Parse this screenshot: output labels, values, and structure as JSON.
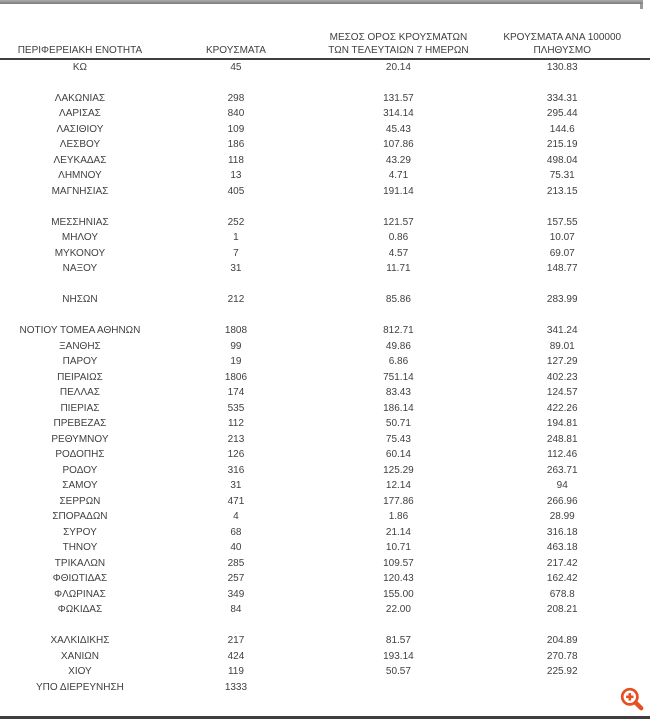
{
  "chart_data": {
    "type": "table",
    "title": "",
    "columns": [
      {
        "line1": "ΠΕΡΙΦΕΡΕΙΑΚΗ ΕΝΟΤΗΤΑ",
        "line2": ""
      },
      {
        "line1": "ΚΡΟΥΣΜΑΤΑ",
        "line2": ""
      },
      {
        "line1": "ΜΕΣΟΣ ΟΡΟΣ ΚΡΟΥΣΜΑΤΩΝ",
        "line2": "ΤΩΝ ΤΕΛΕΥΤΑΙΩΝ 7 ΗΜΕΡΩΝ"
      },
      {
        "line1": "ΚΡΟΥΣΜΑΤΑ ΑΝΑ 100000",
        "line2": "ΠΛΗΘΥΣΜΟ"
      }
    ],
    "groups": [
      {
        "rows": [
          [
            "ΚΩ",
            "45",
            "20.14",
            "130.83"
          ]
        ]
      },
      {
        "rows": [
          [
            "ΛΑΚΩΝΙΑΣ",
            "298",
            "131.57",
            "334.31"
          ],
          [
            "ΛΑΡΙΣΑΣ",
            "840",
            "314.14",
            "295.44"
          ],
          [
            "ΛΑΣΙΘΙΟΥ",
            "109",
            "45.43",
            "144.6"
          ],
          [
            "ΛΕΣΒΟΥ",
            "186",
            "107.86",
            "215.19"
          ],
          [
            "ΛΕΥΚΑΔΑΣ",
            "118",
            "43.29",
            "498.04"
          ],
          [
            "ΛΗΜΝΟΥ",
            "13",
            "4.71",
            "75.31"
          ],
          [
            "ΜΑΓΝΗΣΙΑΣ",
            "405",
            "191.14",
            "213.15"
          ]
        ]
      },
      {
        "rows": [
          [
            "ΜΕΣΣΗΝΙΑΣ",
            "252",
            "121.57",
            "157.55"
          ],
          [
            "ΜΗΛΟΥ",
            "1",
            "0.86",
            "10.07"
          ],
          [
            "ΜΥΚΟΝΟΥ",
            "7",
            "4.57",
            "69.07"
          ],
          [
            "ΝΑΞΟΥ",
            "31",
            "11.71",
            "148.77"
          ]
        ]
      },
      {
        "rows": [
          [
            "ΝΗΣΩΝ",
            "212",
            "85.86",
            "283.99"
          ]
        ]
      },
      {
        "rows": [
          [
            "ΝΟΤΙΟΥ ΤΟΜΕΑ ΑΘΗΝΩΝ",
            "1808",
            "812.71",
            "341.24"
          ],
          [
            "ΞΑΝΘΗΣ",
            "99",
            "49.86",
            "89.01"
          ],
          [
            "ΠΑΡΟΥ",
            "19",
            "6.86",
            "127.29"
          ],
          [
            "ΠΕΙΡΑΙΩΣ",
            "1806",
            "751.14",
            "402.23"
          ],
          [
            "ΠΕΛΛΑΣ",
            "174",
            "83.43",
            "124.57"
          ],
          [
            "ΠΙΕΡΙΑΣ",
            "535",
            "186.14",
            "422.26"
          ],
          [
            "ΠΡΕΒΕΖΑΣ",
            "112",
            "50.71",
            "194.81"
          ],
          [
            "ΡΕΘΥΜΝΟΥ",
            "213",
            "75.43",
            "248.81"
          ],
          [
            "ΡΟΔΟΠΗΣ",
            "126",
            "60.14",
            "112.46"
          ],
          [
            "ΡΟΔΟΥ",
            "316",
            "125.29",
            "263.71"
          ],
          [
            "ΣΑΜΟΥ",
            "31",
            "12.14",
            "94"
          ],
          [
            "ΣΕΡΡΩΝ",
            "471",
            "177.86",
            "266.96"
          ],
          [
            "ΣΠΟΡΑΔΩΝ",
            "4",
            "1.86",
            "28.99"
          ],
          [
            "ΣΥΡΟΥ",
            "68",
            "21.14",
            "316.18"
          ],
          [
            "ΤΗΝΟΥ",
            "40",
            "10.71",
            "463.18"
          ],
          [
            "ΤΡΙΚΑΛΩΝ",
            "285",
            "109.57",
            "217.42"
          ],
          [
            "ΦΘΙΩΤΙΔΑΣ",
            "257",
            "120.43",
            "162.42"
          ],
          [
            "ΦΛΩΡΙΝΑΣ",
            "349",
            "155.00",
            "678.8"
          ],
          [
            "ΦΩΚΙΔΑΣ",
            "84",
            "22.00",
            "208.21"
          ]
        ]
      },
      {
        "rows": [
          [
            "ΧΑΛΚΙΔΙΚΗΣ",
            "217",
            "81.57",
            "204.89"
          ],
          [
            "ΧΑΝΙΩΝ",
            "424",
            "193.14",
            "270.78"
          ],
          [
            "ΧΙΟΥ",
            "119",
            "50.57",
            "225.92"
          ],
          [
            "ΥΠΟ ΔΙΕΡΕΥΝΗΣΗ",
            "1333",
            "",
            ""
          ]
        ]
      }
    ]
  },
  "icons": {
    "zoom_icon": "magnifier-plus",
    "zoom_icon_color": "#e64f22"
  },
  "rules": {
    "top_rule_color": "#8c8c8c",
    "bottom_rule_color": "#3e3e3e",
    "header_rule_color": "#3f3f3f"
  }
}
